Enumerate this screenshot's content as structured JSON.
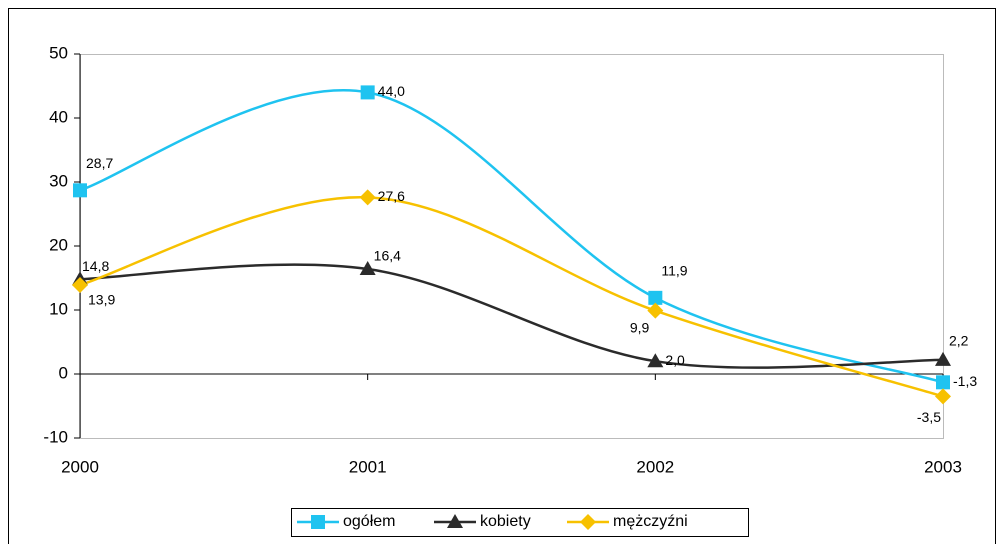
{
  "chart_data": {
    "type": "line",
    "x": [
      2000,
      2001,
      2002,
      2003
    ],
    "xlim": [
      2000,
      2003
    ],
    "xticks": [
      2000,
      2001,
      2002,
      2003
    ],
    "ylim": [
      -10,
      50
    ],
    "yticks": [
      -10,
      0,
      10,
      20,
      30,
      40,
      50
    ],
    "smooth": true,
    "legend": "bottom",
    "series": [
      {
        "name": "ogółem",
        "color": "#1fc3f0",
        "marker": "square",
        "values": [
          28.7,
          44.0,
          11.9,
          -1.3
        ],
        "value_labels": [
          "28,7",
          "44,0",
          "11,9",
          "-1,3"
        ]
      },
      {
        "name": "kobiety",
        "color": "#2b2b2b",
        "marker": "triangle",
        "values": [
          14.8,
          16.4,
          2.0,
          2.2
        ],
        "value_labels": [
          "14,8",
          "16,4",
          "2,0",
          "2,2"
        ]
      },
      {
        "name": "mężczyźni",
        "color": "#f7c100",
        "marker": "diamond",
        "values": [
          13.9,
          27.6,
          9.9,
          -3.5
        ],
        "value_labels": [
          "13,9",
          "27,6",
          "9,9",
          "-3,5"
        ]
      }
    ]
  }
}
